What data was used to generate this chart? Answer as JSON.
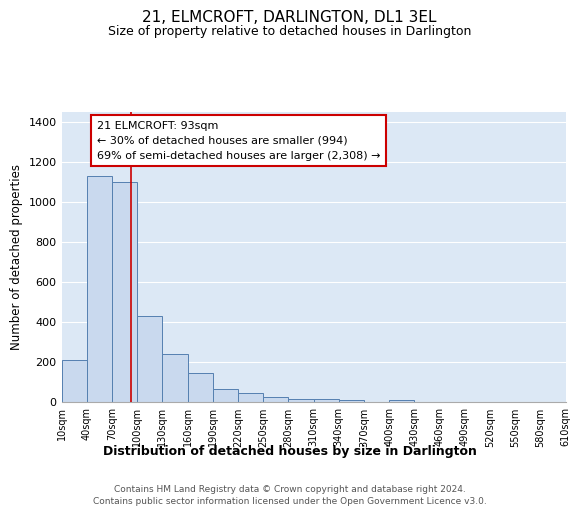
{
  "title": "21, ELMCROFT, DARLINGTON, DL1 3EL",
  "subtitle": "Size of property relative to detached houses in Darlington",
  "xlabel": "Distribution of detached houses by size in Darlington",
  "ylabel": "Number of detached properties",
  "bar_edges": [
    10,
    40,
    70,
    100,
    130,
    160,
    190,
    220,
    250,
    280,
    310,
    340,
    370,
    400,
    430,
    460,
    490,
    520,
    550,
    580,
    610
  ],
  "bar_values": [
    210,
    1130,
    1100,
    430,
    240,
    145,
    65,
    45,
    25,
    15,
    13,
    10,
    0,
    12,
    0,
    0,
    0,
    0,
    0,
    0
  ],
  "bar_color": "#c9d9ee",
  "bar_edge_color": "#5580b0",
  "bar_linewidth": 0.7,
  "vline_x": 93,
  "vline_color": "#cc0000",
  "vline_linewidth": 1.2,
  "annotation_title": "21 ELMCROFT: 93sqm",
  "annotation_line1": "← 30% of detached houses are smaller (994)",
  "annotation_line2": "69% of semi-detached houses are larger (2,308) →",
  "ylim": [
    0,
    1450
  ],
  "yticks": [
    0,
    200,
    400,
    600,
    800,
    1000,
    1200,
    1400
  ],
  "tick_labels": [
    "10sqm",
    "40sqm",
    "70sqm",
    "100sqm",
    "130sqm",
    "160sqm",
    "190sqm",
    "220sqm",
    "250sqm",
    "280sqm",
    "310sqm",
    "340sqm",
    "370sqm",
    "400sqm",
    "430sqm",
    "460sqm",
    "490sqm",
    "520sqm",
    "550sqm",
    "580sqm",
    "610sqm"
  ],
  "background_color": "#dce8f5",
  "grid_color": "#ffffff",
  "footer_line1": "Contains HM Land Registry data © Crown copyright and database right 2024.",
  "footer_line2": "Contains public sector information licensed under the Open Government Licence v3.0."
}
